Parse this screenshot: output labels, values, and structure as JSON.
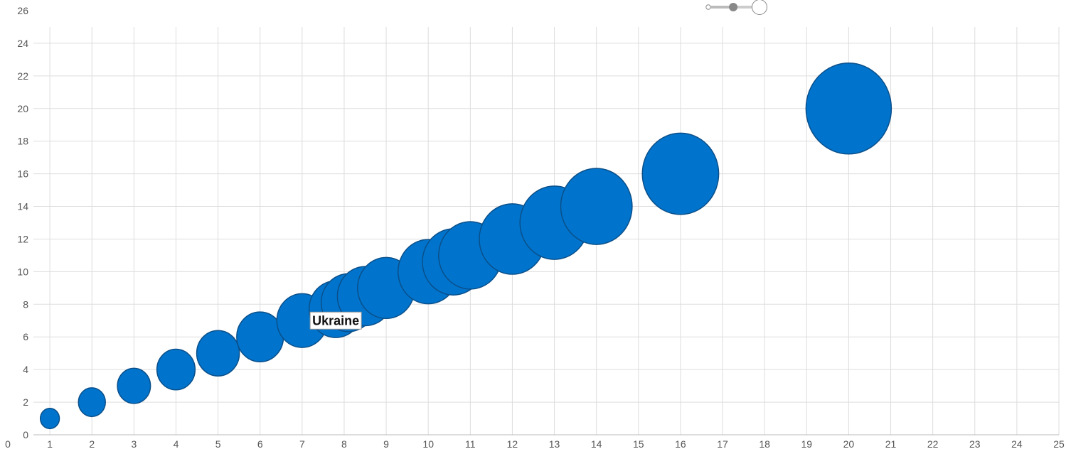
{
  "chart_data": {
    "type": "scatter",
    "encoding": "bubble",
    "title": "",
    "xlabel": "",
    "ylabel": "",
    "xlim": [
      0,
      25
    ],
    "ylim": [
      0,
      26
    ],
    "x_ticks": [
      "0",
      "1",
      "2",
      "3",
      "4",
      "5",
      "6",
      "7",
      "8",
      "9",
      "10",
      "11",
      "12",
      "13",
      "14",
      "15",
      "16",
      "17",
      "18",
      "19",
      "20",
      "21",
      "22",
      "23",
      "24",
      "25"
    ],
    "y_ticks": [
      "0",
      "2",
      "4",
      "6",
      "8",
      "10",
      "12",
      "14",
      "16",
      "18",
      "20",
      "22",
      "24",
      "26"
    ],
    "grid": true,
    "legend": "none",
    "series": [
      {
        "color": "#0074cc",
        "points": [
          {
            "x": 1,
            "y": 1,
            "size": 1
          },
          {
            "x": 2,
            "y": 2,
            "size": 2
          },
          {
            "x": 3,
            "y": 3,
            "size": 3
          },
          {
            "x": 4,
            "y": 4,
            "size": 4
          },
          {
            "x": 5,
            "y": 5,
            "size": 5
          },
          {
            "x": 6,
            "y": 6,
            "size": 6
          },
          {
            "x": 7,
            "y": 7,
            "size": 7
          },
          {
            "x": 7.8,
            "y": 7.7,
            "size": 7.8
          },
          {
            "x": 8.1,
            "y": 8.1,
            "size": 8.1
          },
          {
            "x": 8.5,
            "y": 8.5,
            "size": 8.5
          },
          {
            "x": 9,
            "y": 9,
            "size": 9
          },
          {
            "x": 10,
            "y": 10,
            "size": 10
          },
          {
            "x": 10.6,
            "y": 10.6,
            "size": 10.6
          },
          {
            "x": 11,
            "y": 11,
            "size": 11
          },
          {
            "x": 12,
            "y": 12,
            "size": 12
          },
          {
            "x": 13,
            "y": 13,
            "size": 13
          },
          {
            "x": 14,
            "y": 14,
            "size": 14
          },
          {
            "x": 16,
            "y": 16,
            "size": 16
          },
          {
            "x": 20,
            "y": 20,
            "size": 20
          }
        ]
      }
    ],
    "annotations": [
      {
        "text": "Ukraine",
        "x": 7.8,
        "y": 7.0
      }
    ]
  },
  "controls": {
    "size_slider": {
      "value": 0.55
    }
  }
}
